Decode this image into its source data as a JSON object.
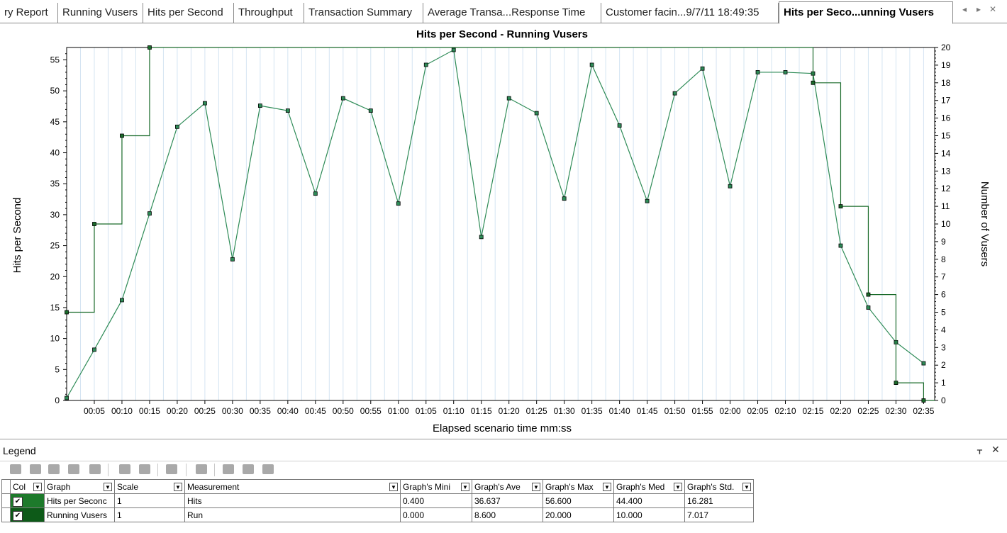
{
  "tabs": [
    {
      "label": "ry Report",
      "active": false
    },
    {
      "label": "Running Vusers",
      "active": false
    },
    {
      "label": "Hits per Second",
      "active": false
    },
    {
      "label": "Throughput",
      "active": false
    },
    {
      "label": "Transaction Summary",
      "active": false
    },
    {
      "label": "Average Transa...Response Time",
      "active": false
    },
    {
      "label": "Customer facin...9/7/11 18:49:35",
      "active": false
    },
    {
      "label": "Hits per Seco...unning Vusers",
      "active": true
    }
  ],
  "tab_nav": {
    "prev": "◂",
    "next": "▸",
    "close": "✕"
  },
  "chart_data": {
    "type": "line",
    "title": "Hits per Second - Running Vusers",
    "xlabel": "Elapsed scenario time mm:ss",
    "ylabel_left": "Hits per Second",
    "ylabel_right": "Number of Vusers",
    "xlim": [
      0,
      157
    ],
    "ylim_left": [
      0,
      57
    ],
    "ylim_right": [
      0,
      20
    ],
    "x_ticks": [
      {
        "v": 5,
        "label": "00:05"
      },
      {
        "v": 10,
        "label": "00:10"
      },
      {
        "v": 15,
        "label": "00:15"
      },
      {
        "v": 20,
        "label": "00:20"
      },
      {
        "v": 25,
        "label": "00:25"
      },
      {
        "v": 30,
        "label": "00:30"
      },
      {
        "v": 35,
        "label": "00:35"
      },
      {
        "v": 40,
        "label": "00:40"
      },
      {
        "v": 45,
        "label": "00:45"
      },
      {
        "v": 50,
        "label": "00:50"
      },
      {
        "v": 55,
        "label": "00:55"
      },
      {
        "v": 60,
        "label": "01:00"
      },
      {
        "v": 65,
        "label": "01:05"
      },
      {
        "v": 70,
        "label": "01:10"
      },
      {
        "v": 75,
        "label": "01:15"
      },
      {
        "v": 80,
        "label": "01:20"
      },
      {
        "v": 85,
        "label": "01:25"
      },
      {
        "v": 90,
        "label": "01:30"
      },
      {
        "v": 95,
        "label": "01:35"
      },
      {
        "v": 100,
        "label": "01:40"
      },
      {
        "v": 105,
        "label": "01:45"
      },
      {
        "v": 110,
        "label": "01:50"
      },
      {
        "v": 115,
        "label": "01:55"
      },
      {
        "v": 120,
        "label": "02:00"
      },
      {
        "v": 125,
        "label": "02:05"
      },
      {
        "v": 130,
        "label": "02:10"
      },
      {
        "v": 135,
        "label": "02:15"
      },
      {
        "v": 140,
        "label": "02:20"
      },
      {
        "v": 145,
        "label": "02:25"
      },
      {
        "v": 150,
        "label": "02:30"
      },
      {
        "v": 155,
        "label": "02:35"
      }
    ],
    "y_ticks_left": [
      0,
      5,
      10,
      15,
      20,
      25,
      30,
      35,
      40,
      45,
      50,
      55
    ],
    "y_ticks_right": [
      0,
      1,
      2,
      3,
      4,
      5,
      6,
      7,
      8,
      9,
      10,
      11,
      12,
      13,
      14,
      15,
      16,
      17,
      18,
      19,
      20
    ],
    "grid": true,
    "series": [
      {
        "name": "Hits per Second",
        "axis": "left",
        "style": "line",
        "color": "#2e8b57",
        "x": [
          0,
          5,
          10,
          15,
          20,
          25,
          30,
          35,
          40,
          45,
          50,
          55,
          60,
          65,
          70,
          75,
          80,
          85,
          90,
          95,
          100,
          105,
          110,
          115,
          120,
          125,
          130,
          135,
          140,
          145,
          150,
          155
        ],
        "values": [
          0.4,
          8.2,
          16.2,
          30.2,
          44.2,
          48.0,
          22.8,
          47.6,
          46.8,
          33.4,
          48.8,
          46.8,
          31.8,
          54.2,
          56.6,
          26.4,
          48.8,
          46.4,
          32.6,
          54.2,
          44.4,
          32.2,
          49.6,
          53.6,
          34.6,
          53.0,
          53.0,
          52.8,
          25.0,
          15.0,
          9.4,
          6.0
        ]
      },
      {
        "name": "Running Vusers",
        "axis": "right",
        "style": "step",
        "color": "#1a6b2a",
        "x": [
          0,
          5,
          10,
          15,
          135,
          140,
          145,
          150,
          155,
          157
        ],
        "values": [
          5,
          10,
          15,
          20,
          18,
          11,
          6,
          1,
          0,
          0
        ]
      }
    ]
  },
  "legend": {
    "title": "Legend",
    "pin": "ᚁ",
    "close": "✕",
    "columns": [
      "Col",
      "Graph",
      "Scale",
      "Measurement",
      "Graph's Mini",
      "Graph's Ave",
      "Graph's Max",
      "Graph's Med",
      "Graph's Std."
    ],
    "rows": [
      {
        "color": "#1d7a2b",
        "checked": "✔",
        "graph": "Hits per Seconc",
        "scale": "1",
        "measurement": "Hits",
        "min": "0.400",
        "avg": "36.637",
        "max": "56.600",
        "med": "44.400",
        "std": "16.281"
      },
      {
        "color": "#0d5a18",
        "checked": "✔",
        "graph": "Running Vusers",
        "scale": "1",
        "measurement": "Run",
        "min": "0.000",
        "avg": "8.600",
        "max": "20.000",
        "med": "10.000",
        "std": "7.017"
      }
    ]
  }
}
